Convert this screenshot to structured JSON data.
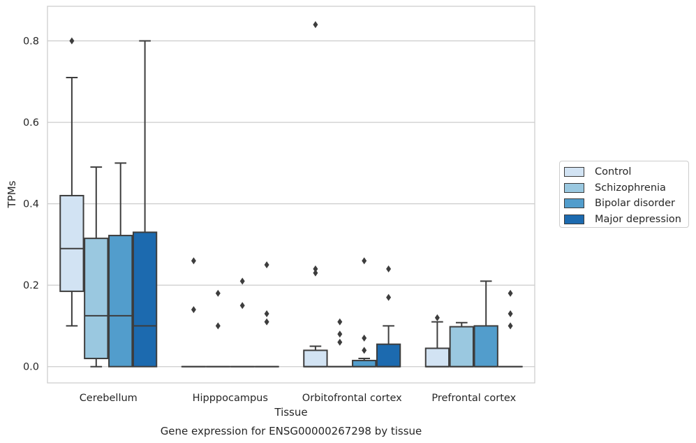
{
  "chart_data": {
    "type": "box",
    "title": "",
    "caption": "Gene expression for ENSG00000267298 by tissue",
    "xlabel": "Tissue",
    "ylabel": "TPMs",
    "ylim": [
      -0.04,
      0.885
    ],
    "yticks": [
      0.0,
      0.2,
      0.4,
      0.6,
      0.8
    ],
    "ytick_labels": [
      "0.0",
      "0.2",
      "0.4",
      "0.6",
      "0.8"
    ],
    "grid": "horizontal",
    "legend_position": "center-right",
    "categories": [
      "Cerebellum",
      "Hipppocampus",
      "Orbitofrontal cortex",
      "Prefrontal cortex"
    ],
    "series": [
      {
        "name": "Control",
        "color": "#d2e3f3",
        "boxes": [
          {
            "whislo": 0.1,
            "q1": 0.185,
            "med": 0.29,
            "q3": 0.42,
            "whishi": 0.71,
            "fliers": [
              0.8
            ]
          },
          {
            "whislo": 0.0,
            "q1": 0.0,
            "med": 0.0,
            "q3": 0.0,
            "whishi": 0.0,
            "fliers": [
              0.26,
              0.14
            ]
          },
          {
            "whislo": 0.0,
            "q1": 0.0,
            "med": 0.0,
            "q3": 0.04,
            "whishi": 0.05,
            "fliers": [
              0.84,
              0.24,
              0.23
            ]
          },
          {
            "whislo": 0.0,
            "q1": 0.0,
            "med": 0.0,
            "q3": 0.045,
            "whishi": 0.11,
            "fliers": [
              0.12
            ]
          }
        ]
      },
      {
        "name": "Schizophrenia",
        "color": "#9ac8e0",
        "boxes": [
          {
            "whislo": 0.0,
            "q1": 0.02,
            "med": 0.125,
            "q3": 0.315,
            "whishi": 0.49,
            "fliers": []
          },
          {
            "whislo": 0.0,
            "q1": 0.0,
            "med": 0.0,
            "q3": 0.0,
            "whishi": 0.0,
            "fliers": [
              0.18,
              0.1
            ]
          },
          {
            "whislo": 0.0,
            "q1": 0.0,
            "med": 0.0,
            "q3": 0.0,
            "whishi": 0.0,
            "fliers": [
              0.11,
              0.08,
              0.06
            ]
          },
          {
            "whislo": 0.0,
            "q1": 0.0,
            "med": 0.0,
            "q3": 0.098,
            "whishi": 0.108,
            "fliers": []
          }
        ]
      },
      {
        "name": "Bipolar disorder",
        "color": "#529dcc",
        "boxes": [
          {
            "whislo": 0.0,
            "q1": 0.0,
            "med": 0.125,
            "q3": 0.322,
            "whishi": 0.5,
            "fliers": []
          },
          {
            "whislo": 0.0,
            "q1": 0.0,
            "med": 0.0,
            "q3": 0.0,
            "whishi": 0.0,
            "fliers": [
              0.21,
              0.15
            ]
          },
          {
            "whislo": 0.0,
            "q1": 0.0,
            "med": 0.0,
            "q3": 0.015,
            "whishi": 0.02,
            "fliers": [
              0.26,
              0.07,
              0.04
            ]
          },
          {
            "whislo": 0.0,
            "q1": 0.0,
            "med": 0.0,
            "q3": 0.1,
            "whishi": 0.21,
            "fliers": []
          }
        ]
      },
      {
        "name": "Major depression",
        "color": "#1c6aaf",
        "boxes": [
          {
            "whislo": 0.0,
            "q1": 0.0,
            "med": 0.1,
            "q3": 0.33,
            "whishi": 0.8,
            "fliers": []
          },
          {
            "whislo": 0.0,
            "q1": 0.0,
            "med": 0.0,
            "q3": 0.0,
            "whishi": 0.0,
            "fliers": [
              0.25,
              0.13,
              0.11
            ]
          },
          {
            "whislo": 0.0,
            "q1": 0.0,
            "med": 0.0,
            "q3": 0.055,
            "whishi": 0.1,
            "fliers": [
              0.24,
              0.17
            ]
          },
          {
            "whislo": 0.0,
            "q1": 0.0,
            "med": 0.0,
            "q3": 0.0,
            "whishi": 0.0,
            "fliers": [
              0.18,
              0.13,
              0.1
            ]
          }
        ]
      }
    ]
  }
}
